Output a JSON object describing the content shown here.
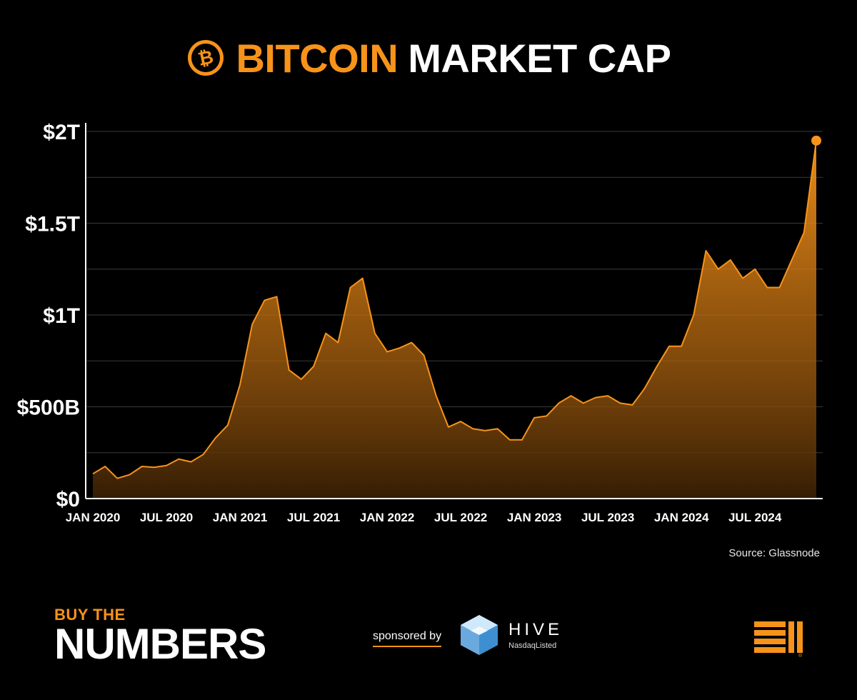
{
  "header": {
    "title_accent": "BITCOIN",
    "title_rest": "MARKET CAP",
    "logo_icon": "bitcoin-coin-icon"
  },
  "colors": {
    "accent": "#f7931a",
    "background": "#000000",
    "grid": "#3a3a3a"
  },
  "source": "Source: Glassnode",
  "footer": {
    "brand_top": "BUY THE",
    "brand_main": "NUMBERS",
    "sponsored_by": "sponsored by",
    "sponsor_name": "HIVE",
    "sponsor_sub": "NasdaqListed",
    "sponsor_icon": "hive-cube-icon",
    "corner_icon": "bitwise-logo-icon"
  },
  "chart_data": {
    "type": "area",
    "title": "BITCOIN MARKET CAP",
    "xlabel": "",
    "ylabel": "",
    "ylim": [
      0,
      2000
    ],
    "y_unit": "billion USD",
    "y_ticks": [
      0,
      500,
      1000,
      1500,
      2000
    ],
    "y_tick_labels": [
      "$0",
      "$500B",
      "$1T",
      "$1.5T",
      "$2T"
    ],
    "x_range": [
      "2020-01",
      "2024-12"
    ],
    "x_tick_labels": [
      "JAN 2020",
      "JUL 2020",
      "JAN 2021",
      "JUL 2021",
      "JAN 2022",
      "JUL 2022",
      "JAN 2023",
      "JUL 2023",
      "JAN 2024",
      "JUL 2024"
    ],
    "x": [
      "2020-01",
      "2020-02",
      "2020-03",
      "2020-04",
      "2020-05",
      "2020-06",
      "2020-07",
      "2020-08",
      "2020-09",
      "2020-10",
      "2020-11",
      "2020-12",
      "2021-01",
      "2021-02",
      "2021-03",
      "2021-04",
      "2021-05",
      "2021-06",
      "2021-07",
      "2021-08",
      "2021-09",
      "2021-10",
      "2021-11",
      "2021-12",
      "2022-01",
      "2022-02",
      "2022-03",
      "2022-04",
      "2022-05",
      "2022-06",
      "2022-07",
      "2022-08",
      "2022-09",
      "2022-10",
      "2022-11",
      "2022-12",
      "2023-01",
      "2023-02",
      "2023-03",
      "2023-04",
      "2023-05",
      "2023-06",
      "2023-07",
      "2023-08",
      "2023-09",
      "2023-10",
      "2023-11",
      "2023-12",
      "2024-01",
      "2024-02",
      "2024-03",
      "2024-04",
      "2024-05",
      "2024-06",
      "2024-07",
      "2024-08",
      "2024-09",
      "2024-10",
      "2024-11",
      "2024-12"
    ],
    "series": [
      {
        "values": [
          135,
          175,
          110,
          130,
          175,
          170,
          180,
          215,
          200,
          240,
          330,
          400,
          620,
          950,
          1080,
          1100,
          700,
          650,
          720,
          900,
          850,
          1150,
          1200,
          900,
          800,
          820,
          850,
          780,
          560,
          390,
          420,
          380,
          370,
          380,
          320,
          320,
          440,
          450,
          520,
          560,
          520,
          550,
          560,
          520,
          510,
          600,
          720,
          830,
          830,
          1000,
          1350,
          1250,
          1300,
          1200,
          1250,
          1150,
          1150,
          1300,
          1450,
          1950
        ]
      }
    ],
    "grid": true,
    "end_marker": true
  }
}
